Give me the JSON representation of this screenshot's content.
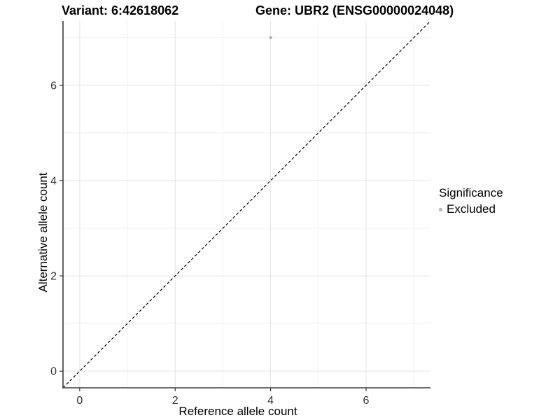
{
  "figure": {
    "title_variant": "Variant: 6:42618062",
    "title_gene": "Gene: UBR2 (ENSG00000024048)"
  },
  "chart_data": {
    "type": "scatter",
    "title": "Variant: 6:42618062   Gene: UBR2 (ENSG00000024048)",
    "xlabel": "Reference allele count",
    "ylabel": "Alternative allele count",
    "xlim": [
      -0.35,
      7.35
    ],
    "ylim": [
      -0.35,
      7.35
    ],
    "x_ticks": [
      0,
      2,
      4,
      6
    ],
    "y_ticks": [
      0,
      2,
      4,
      6
    ],
    "x_minor_ticks": [
      1,
      3,
      5,
      7
    ],
    "y_minor_ticks": [
      1,
      3,
      5,
      7
    ],
    "grid": true,
    "series": [
      {
        "name": "Excluded",
        "points": [
          {
            "x": 4,
            "y": 7
          }
        ]
      }
    ],
    "reference_line": {
      "type": "identity",
      "slope": 1,
      "intercept": 0,
      "style": "dashed"
    },
    "legend": {
      "title": "Significance",
      "position": "right",
      "items": [
        {
          "label": "Excluded",
          "color": "#b4b4b4"
        }
      ]
    },
    "colors": {
      "background": "#ffffff",
      "grid_major": "#e3e3e3",
      "grid_minor": "#f1f1f1",
      "axis_line": "#3c3c3c",
      "tick_mark": "#333333",
      "tick_label": "#333333",
      "point": "#b4b4b4",
      "reference_line": "#000000"
    }
  }
}
